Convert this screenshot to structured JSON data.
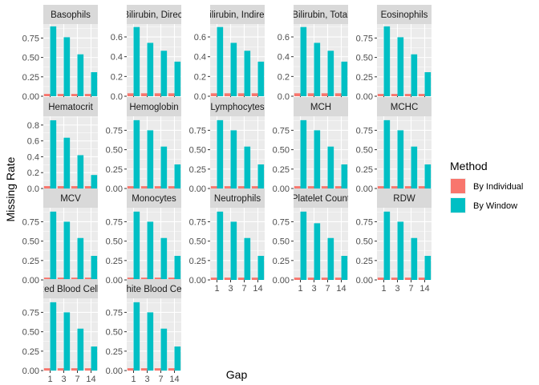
{
  "chart_data": {
    "type": "bar",
    "xlabel": "Gap",
    "ylabel": "Missing Rate",
    "categories": [
      "1",
      "3",
      "7",
      "14"
    ],
    "legend": {
      "title": "Method",
      "position": "right",
      "entries": [
        {
          "name": "By Individual",
          "color": "#F8766D"
        },
        {
          "name": "By Window",
          "color": "#00BFC4"
        }
      ]
    },
    "grid": true,
    "panels": [
      {
        "label": "Basophils",
        "ylim": [
          0,
          0.93
        ],
        "ticks": [
          "0.00",
          "0.25",
          "0.50",
          "0.75"
        ],
        "tickvals": [
          0,
          0.25,
          0.5,
          0.75
        ],
        "series": [
          {
            "name": "By Individual",
            "values": [
              0.03,
              0.03,
              0.03,
              0.03
            ]
          },
          {
            "name": "By Window",
            "values": [
              0.9,
              0.76,
              0.54,
              0.31
            ]
          }
        ]
      },
      {
        "label": "Bilirubin, Direct",
        "ylim": [
          0,
          0.73
        ],
        "ticks": [
          "0.0",
          "0.2",
          "0.4",
          "0.6"
        ],
        "tickvals": [
          0,
          0.2,
          0.4,
          0.6
        ],
        "series": [
          {
            "name": "By Individual",
            "values": [
              0.03,
              0.03,
              0.03,
              0.03
            ]
          },
          {
            "name": "By Window",
            "values": [
              0.7,
              0.54,
              0.46,
              0.35
            ]
          }
        ]
      },
      {
        "label": "Bilirubin, Indirect",
        "ylim": [
          0,
          0.73
        ],
        "ticks": [
          "0.0",
          "0.2",
          "0.4",
          "0.6"
        ],
        "tickvals": [
          0,
          0.2,
          0.4,
          0.6
        ],
        "series": [
          {
            "name": "By Individual",
            "values": [
              0.03,
              0.03,
              0.03,
              0.03
            ]
          },
          {
            "name": "By Window",
            "values": [
              0.7,
              0.54,
              0.46,
              0.35
            ]
          }
        ]
      },
      {
        "label": "Bilirubin, Total",
        "ylim": [
          0,
          0.73
        ],
        "ticks": [
          "0.0",
          "0.2",
          "0.4",
          "0.6"
        ],
        "tickvals": [
          0,
          0.2,
          0.4,
          0.6
        ],
        "series": [
          {
            "name": "By Individual",
            "values": [
              0.03,
              0.03,
              0.03,
              0.03
            ]
          },
          {
            "name": "By Window",
            "values": [
              0.7,
              0.54,
              0.46,
              0.35
            ]
          }
        ]
      },
      {
        "label": "Eosinophils",
        "ylim": [
          0,
          0.93
        ],
        "ticks": [
          "0.00",
          "0.25",
          "0.50",
          "0.75"
        ],
        "tickvals": [
          0,
          0.25,
          0.5,
          0.75
        ],
        "series": [
          {
            "name": "By Individual",
            "values": [
              0.03,
              0.03,
              0.03,
              0.03
            ]
          },
          {
            "name": "By Window",
            "values": [
              0.9,
              0.76,
              0.54,
              0.31
            ]
          }
        ]
      },
      {
        "label": "Hematocrit",
        "ylim": [
          0,
          0.91
        ],
        "ticks": [
          "0.0",
          "0.2",
          "0.4",
          "0.6",
          "0.8"
        ],
        "tickvals": [
          0,
          0.2,
          0.4,
          0.6,
          0.8
        ],
        "series": [
          {
            "name": "By Individual",
            "values": [
              0.03,
              0.03,
              0.03,
              0.03
            ]
          },
          {
            "name": "By Window",
            "values": [
              0.86,
              0.64,
              0.42,
              0.17
            ]
          }
        ]
      },
      {
        "label": "Hemoglobin",
        "ylim": [
          0,
          0.93
        ],
        "ticks": [
          "0.00",
          "0.25",
          "0.50",
          "0.75"
        ],
        "tickvals": [
          0,
          0.25,
          0.5,
          0.75
        ],
        "series": [
          {
            "name": "By Individual",
            "values": [
              0.03,
              0.03,
              0.03,
              0.03
            ]
          },
          {
            "name": "By Window",
            "values": [
              0.88,
              0.75,
              0.54,
              0.31
            ]
          }
        ]
      },
      {
        "label": "Lymphocytes",
        "ylim": [
          0,
          0.93
        ],
        "ticks": [
          "0.00",
          "0.25",
          "0.50",
          "0.75"
        ],
        "tickvals": [
          0,
          0.25,
          0.5,
          0.75
        ],
        "series": [
          {
            "name": "By Individual",
            "values": [
              0.03,
              0.03,
              0.03,
              0.03
            ]
          },
          {
            "name": "By Window",
            "values": [
              0.88,
              0.75,
              0.54,
              0.31
            ]
          }
        ]
      },
      {
        "label": "MCH",
        "ylim": [
          0,
          0.93
        ],
        "ticks": [
          "0.00",
          "0.25",
          "0.50",
          "0.75"
        ],
        "tickvals": [
          0,
          0.25,
          0.5,
          0.75
        ],
        "series": [
          {
            "name": "By Individual",
            "values": [
              0.03,
              0.03,
              0.03,
              0.03
            ]
          },
          {
            "name": "By Window",
            "values": [
              0.88,
              0.75,
              0.54,
              0.31
            ]
          }
        ]
      },
      {
        "label": "MCHC",
        "ylim": [
          0,
          0.93
        ],
        "ticks": [
          "0.00",
          "0.25",
          "0.50",
          "0.75"
        ],
        "tickvals": [
          0,
          0.25,
          0.5,
          0.75
        ],
        "series": [
          {
            "name": "By Individual",
            "values": [
              0.03,
              0.03,
              0.03,
              0.03
            ]
          },
          {
            "name": "By Window",
            "values": [
              0.88,
              0.75,
              0.54,
              0.31
            ]
          }
        ]
      },
      {
        "label": "MCV",
        "ylim": [
          0,
          0.93
        ],
        "ticks": [
          "0.00",
          "0.25",
          "0.50",
          "0.75"
        ],
        "tickvals": [
          0,
          0.25,
          0.5,
          0.75
        ],
        "series": [
          {
            "name": "By Individual",
            "values": [
              0.03,
              0.03,
              0.03,
              0.03
            ]
          },
          {
            "name": "By Window",
            "values": [
              0.88,
              0.75,
              0.54,
              0.31
            ]
          }
        ]
      },
      {
        "label": "Monocytes",
        "ylim": [
          0,
          0.93
        ],
        "ticks": [
          "0.00",
          "0.25",
          "0.50",
          "0.75"
        ],
        "tickvals": [
          0,
          0.25,
          0.5,
          0.75
        ],
        "series": [
          {
            "name": "By Individual",
            "values": [
              0.03,
              0.03,
              0.03,
              0.03
            ]
          },
          {
            "name": "By Window",
            "values": [
              0.88,
              0.75,
              0.54,
              0.31
            ]
          }
        ]
      },
      {
        "label": "Neutrophils",
        "ylim": [
          0,
          0.93
        ],
        "ticks": [
          "0.00",
          "0.25",
          "0.50",
          "0.75"
        ],
        "tickvals": [
          0,
          0.25,
          0.5,
          0.75
        ],
        "series": [
          {
            "name": "By Individual",
            "values": [
              0.03,
              0.03,
              0.03,
              0.03
            ]
          },
          {
            "name": "By Window",
            "values": [
              0.88,
              0.75,
              0.54,
              0.31
            ]
          }
        ]
      },
      {
        "label": "Platelet Count",
        "ylim": [
          0,
          0.93
        ],
        "ticks": [
          "0.00",
          "0.25",
          "0.50",
          "0.75"
        ],
        "tickvals": [
          0,
          0.25,
          0.5,
          0.75
        ],
        "series": [
          {
            "name": "By Individual",
            "values": [
              0.03,
              0.03,
              0.03,
              0.03
            ]
          },
          {
            "name": "By Window",
            "values": [
              0.88,
              0.73,
              0.54,
              0.31
            ]
          }
        ]
      },
      {
        "label": "RDW",
        "ylim": [
          0,
          0.93
        ],
        "ticks": [
          "0.00",
          "0.25",
          "0.50",
          "0.75"
        ],
        "tickvals": [
          0,
          0.25,
          0.5,
          0.75
        ],
        "series": [
          {
            "name": "By Individual",
            "values": [
              0.03,
              0.03,
              0.03,
              0.03
            ]
          },
          {
            "name": "By Window",
            "values": [
              0.88,
              0.75,
              0.54,
              0.31
            ]
          }
        ]
      },
      {
        "label": "Red Blood Cells",
        "ylim": [
          0,
          0.93
        ],
        "ticks": [
          "0.00",
          "0.25",
          "0.50",
          "0.75"
        ],
        "tickvals": [
          0,
          0.25,
          0.5,
          0.75
        ],
        "series": [
          {
            "name": "By Individual",
            "values": [
              0.03,
              0.03,
              0.03,
              0.03
            ]
          },
          {
            "name": "By Window",
            "values": [
              0.88,
              0.75,
              0.54,
              0.31
            ]
          }
        ]
      },
      {
        "label": "White Blood Cells",
        "ylim": [
          0,
          0.93
        ],
        "ticks": [
          "0.00",
          "0.25",
          "0.50",
          "0.75"
        ],
        "tickvals": [
          0,
          0.25,
          0.5,
          0.75
        ],
        "series": [
          {
            "name": "By Individual",
            "values": [
              0.03,
              0.03,
              0.03,
              0.03
            ]
          },
          {
            "name": "By Window",
            "values": [
              0.88,
              0.75,
              0.54,
              0.31
            ]
          }
        ]
      }
    ]
  }
}
